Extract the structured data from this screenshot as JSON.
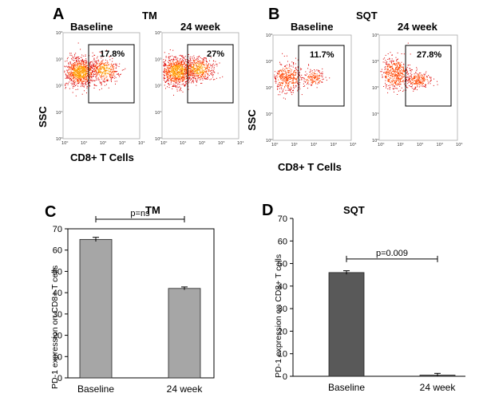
{
  "flow": {
    "A": {
      "label": "A",
      "group": "TM",
      "baseline": "Baseline",
      "week": "24 week",
      "pct_baseline": "17.8%",
      "pct_week": "27%",
      "ylabel": "SSC",
      "xlabel": "CD8+ T Cells"
    },
    "B": {
      "label": "B",
      "group": "SQT",
      "baseline": "Baseline",
      "week": "24 week",
      "pct_baseline": "11.7%",
      "pct_week": "27.8%",
      "ylabel": "SSC",
      "xlabel": "CD8+ T Cells"
    },
    "ticks": [
      "10⁰",
      "10¹",
      "10²",
      "10³",
      "10⁴"
    ],
    "colors": {
      "dense": "#ff9900",
      "mid": "#ff4400",
      "sparse": "#dd0000"
    }
  },
  "chart_data": [
    {
      "type": "bar",
      "panel": "C",
      "title": "TM",
      "categories": [
        "Baseline",
        "24 week"
      ],
      "values": [
        65,
        42
      ],
      "errors": [
        1.0,
        0.7
      ],
      "ylabel": "PD-1 expression on CD8+ T cells",
      "ylim": [
        0,
        70
      ],
      "yticks": [
        "0",
        "10",
        "20",
        "30",
        "40",
        "50",
        "60",
        "70"
      ],
      "annotation": "p=ns",
      "bar_color": "#a6a6a6",
      "axis_box": true
    },
    {
      "type": "bar",
      "panel": "D",
      "title": "SQT",
      "categories": [
        "Baseline",
        "24 week"
      ],
      "values": [
        46,
        0.5
      ],
      "errors": [
        0.8,
        0.8
      ],
      "ylabel": "PD-1 expression on CD8+ T cells",
      "ylim": [
        0,
        70
      ],
      "yticks": [
        "0",
        "10",
        "20",
        "30",
        "40",
        "50",
        "60",
        "70"
      ],
      "annotation": "p=0.009",
      "bar_color": "#595959",
      "axis_box": false
    }
  ]
}
